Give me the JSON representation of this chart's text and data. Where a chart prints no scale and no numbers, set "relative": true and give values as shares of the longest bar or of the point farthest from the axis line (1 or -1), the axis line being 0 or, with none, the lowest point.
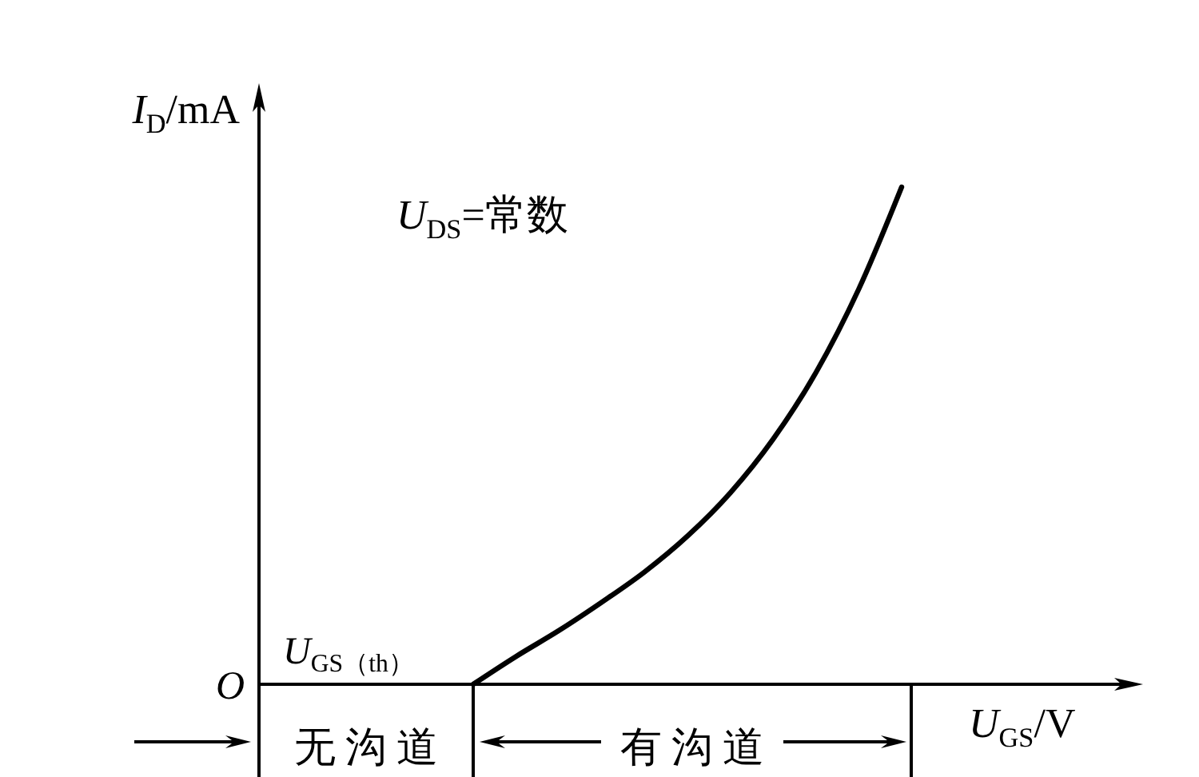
{
  "chart_data": {
    "type": "line",
    "relative": true,
    "xlabel": "U$_{GS}$/V",
    "ylabel": "I$_{D}$/mA",
    "categories": [
      null,
      null,
      null,
      null,
      null,
      null,
      null,
      null,
      null,
      null,
      null,
      null,
      null,
      null,
      null,
      null
    ],
    "values": [
      null,
      null,
      null,
      null,
      null,
      0,
      0.056,
      0.108,
      0.165,
      0.226,
      0.298,
      0.385,
      0.493,
      0.627,
      0.795,
      1
    ],
    "color": "#000000",
    "annotations": [
      "U$_{DS}$=常数",
      "O",
      "U$_{GS（th）}$",
      "无沟道",
      "有沟道"
    ]
  }
}
